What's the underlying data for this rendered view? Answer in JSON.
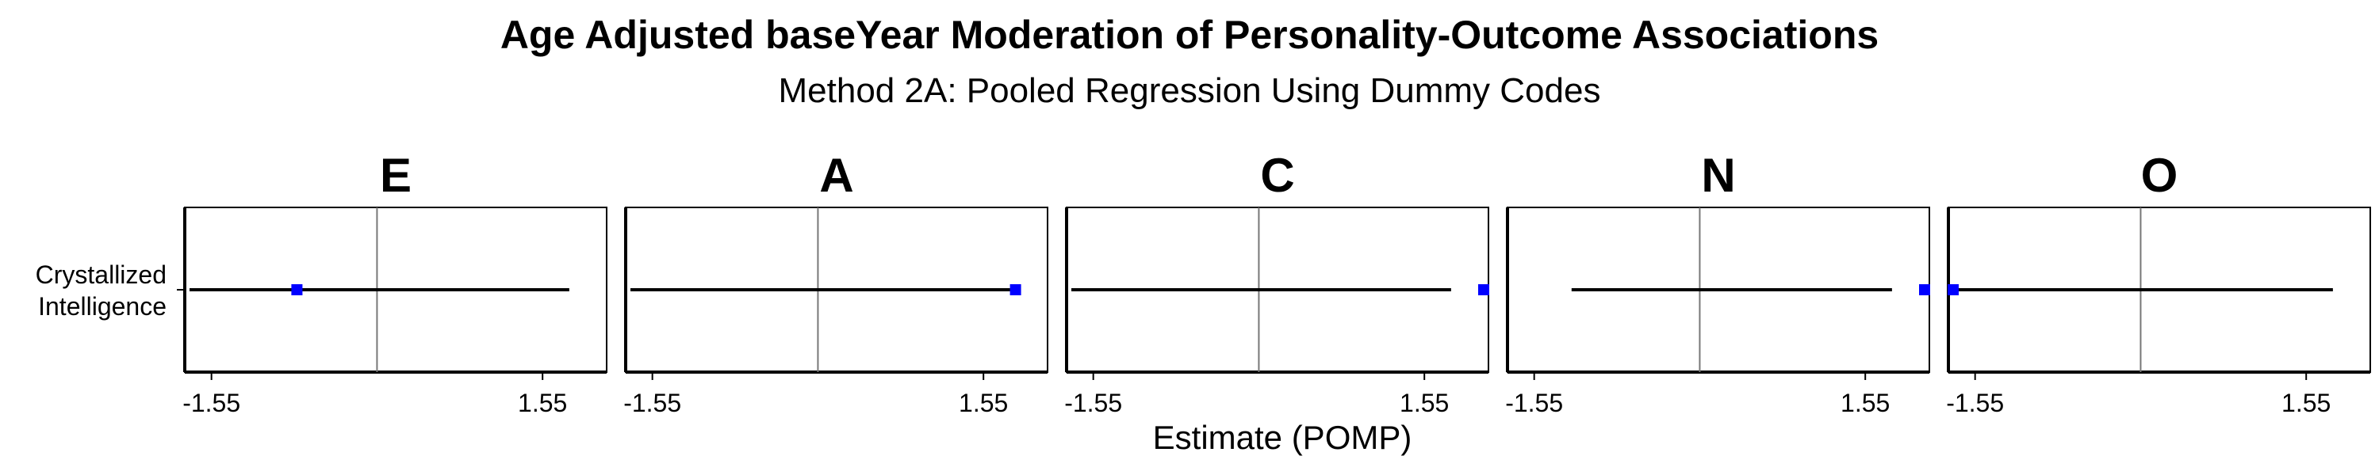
{
  "chart_data": {
    "type": "forest",
    "title": "Age Adjusted baseYear Moderation of Personality-Outcome Associations",
    "subtitle": "Method 2A: Pooled Regression Using Dummy Codes",
    "xlabel": "Estimate (POMP)",
    "row_labels": [
      "Crystallized Intelligence"
    ],
    "row_label_lines": [
      "Crystallized",
      "Intelligence"
    ],
    "xlim": [
      -1.8,
      2.15
    ],
    "reference_line": 0,
    "x_ticks": [
      -1.55,
      1.55
    ],
    "x_tick_labels": [
      "-1.55",
      "1.55"
    ],
    "point_color": "#0000ff",
    "panels": [
      {
        "name": "E",
        "estimate": -0.75,
        "ci_low": -1.8,
        "ci_high": 1.8
      },
      {
        "name": "A",
        "estimate": 1.85,
        "ci_low": -1.8,
        "ci_high": 1.8
      },
      {
        "name": "C",
        "estimate": 2.3,
        "ci_low": -1.8,
        "ci_high": 1.8
      },
      {
        "name": "N",
        "estimate": 2.35,
        "ci_low": -1.2,
        "ci_high": 1.8
      },
      {
        "name": "O",
        "estimate": -2.55,
        "ci_low": -1.8,
        "ci_high": 1.8
      }
    ]
  }
}
